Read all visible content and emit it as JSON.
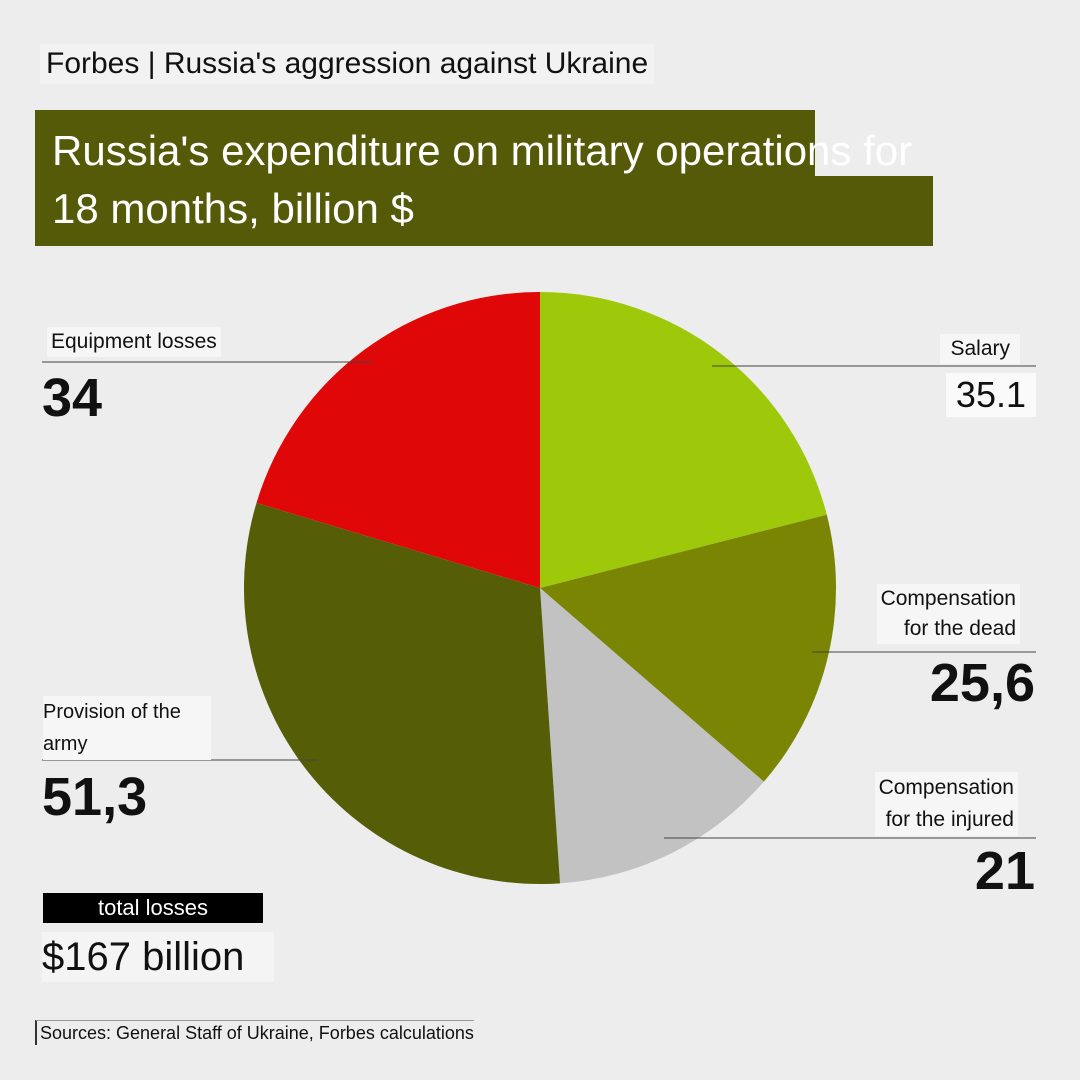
{
  "header": {
    "kicker": "Forbes | Russia's aggression against Ukraine",
    "title": "Russia's expenditure on military operations for 18 months, billion $"
  },
  "labels": {
    "salary": "Salary",
    "salary_value": "35.1",
    "comp_dead": "Compensation\nfor the dead",
    "comp_dead_value": "25,6",
    "comp_injured": "Compensation\nfor the injured",
    "comp_injured_value": "21",
    "provision": "Provision of the\narmy",
    "provision_value": "51,3",
    "equipment": "Equipment losses",
    "equipment_value": "34"
  },
  "total": {
    "label": "total losses",
    "value": "$167 billion"
  },
  "source": "Sources: General Staff of Ukraine, Forbes calculations",
  "chart_data": {
    "type": "pie",
    "title": "Russia's expenditure on military operations for 18 months, billion $",
    "slices": [
      {
        "name": "Salary",
        "value": 35.1,
        "color": "#9ec80a"
      },
      {
        "name": "Compensation for the dead",
        "value": 25.6,
        "color": "#798503"
      },
      {
        "name": "Compensation for the injured",
        "value": 21,
        "color": "#c2c2c2"
      },
      {
        "name": "Provision of the army",
        "value": 51.3,
        "color": "#555e07"
      },
      {
        "name": "Equipment losses",
        "value": 34,
        "color": "#df0707"
      }
    ],
    "start": "12 o'clock",
    "direction": "clockwise",
    "total": 167
  }
}
